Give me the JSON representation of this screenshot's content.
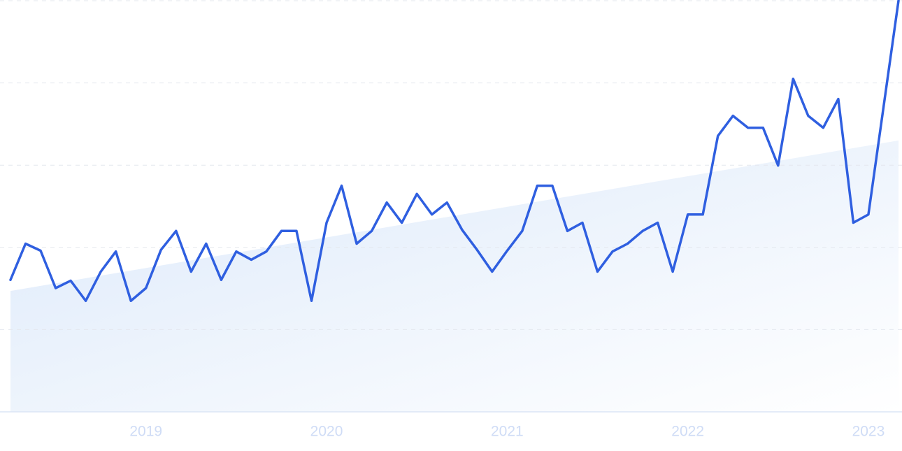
{
  "chart_data": {
    "type": "line",
    "categories": [
      null,
      null,
      null,
      null,
      null,
      null,
      null,
      null,
      null,
      "2019",
      null,
      null,
      null,
      null,
      null,
      null,
      null,
      null,
      null,
      null,
      null,
      "2020",
      null,
      null,
      null,
      null,
      null,
      null,
      null,
      null,
      null,
      null,
      null,
      "2021",
      null,
      null,
      null,
      null,
      null,
      null,
      null,
      null,
      null,
      null,
      null,
      "2022",
      null,
      null,
      null,
      null,
      null,
      null,
      null,
      null,
      null,
      null,
      null,
      "2023",
      null,
      null
    ],
    "series": [
      {
        "color": "#2f5fe0",
        "values": [
          32.1,
          40.9,
          39.2,
          30.1,
          31.9,
          27.0,
          34.1,
          39.0,
          27.0,
          30.1,
          39.4,
          44.0,
          34.1,
          40.9,
          32.1,
          39.0,
          37.0,
          39.0,
          44.0,
          44.0,
          27.0,
          46.0,
          55.0,
          40.9,
          44.0,
          50.9,
          46.0,
          53.0,
          48.0,
          50.9,
          44.3,
          39.4,
          34.1,
          39.2,
          44.0,
          55.0,
          55.0,
          44.0,
          46.0,
          34.1,
          39.0,
          40.9,
          44.0,
          46.0,
          34.1,
          48.0,
          48.0,
          67.1,
          72.0,
          69.1,
          69.1,
          59.9,
          81.0,
          72.0,
          69.1,
          76.1,
          46.0,
          48.0,
          74.0,
          100.0
        ]
      }
    ],
    "trend": [
      29.4,
      66.0
    ],
    "trend_color": "#dce9fa",
    "ylim": [
      0,
      100
    ],
    "yticks": [
      0,
      20,
      40,
      60,
      80,
      100
    ],
    "grid": true
  }
}
